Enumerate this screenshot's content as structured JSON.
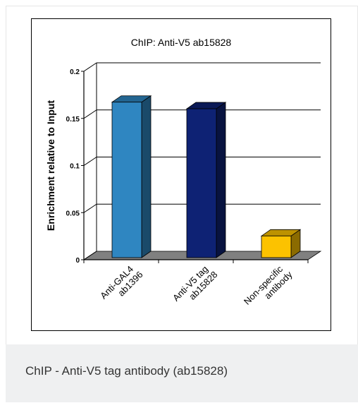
{
  "chart_data": {
    "type": "bar",
    "title": "ChIP: Anti-V5 ab15828",
    "xlabel": "",
    "ylabel": "Enrichment relative to Input",
    "ylim": [
      0,
      0.2
    ],
    "yticks": [
      0,
      0.05,
      0.1,
      0.15,
      0.2
    ],
    "ytick_labels": [
      "0",
      "0.05",
      "0.1",
      "0.15",
      "0.2"
    ],
    "grid": true,
    "categories": [
      [
        "Anti-GAL4",
        "ab1396"
      ],
      [
        "Anti-V5 tag",
        "ab15828"
      ],
      [
        "Non-specific",
        "antibody"
      ]
    ],
    "values": [
      0.165,
      0.158,
      0.023
    ],
    "colors": [
      "#2f86c1",
      "#0e2274",
      "#fcc200"
    ]
  },
  "caption": "ChIP - Anti-V5 tag antibody (ab15828)"
}
